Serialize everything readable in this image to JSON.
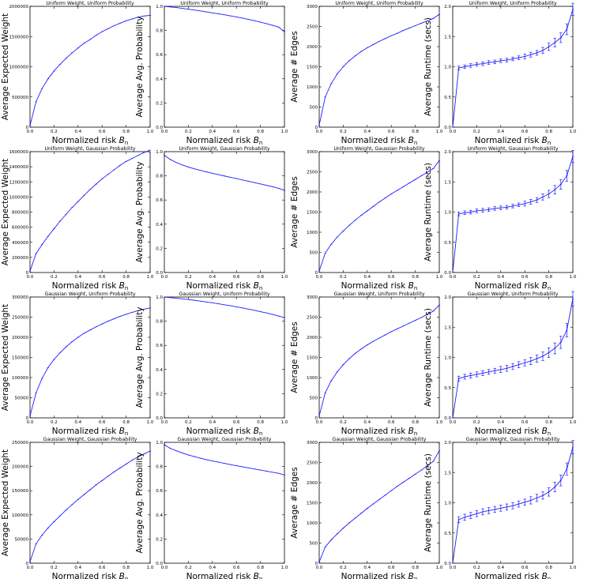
{
  "chart_data": {
    "type": "line",
    "x": [
      0.0,
      0.05,
      0.1,
      0.15,
      0.2,
      0.25,
      0.3,
      0.35,
      0.4,
      0.45,
      0.5,
      0.55,
      0.6,
      0.65,
      0.7,
      0.75,
      0.8,
      0.85,
      0.9,
      0.95,
      1.0
    ],
    "xlabel_text": "Normalized risk ",
    "xlabel_symbol": "B",
    "xlabel_sub": "n",
    "xticks": [
      0.0,
      0.2,
      0.4,
      0.6,
      0.8,
      1.0
    ],
    "xtick_labels": [
      "0.0",
      "0.2",
      "0.4",
      "0.6",
      "0.8",
      "1.0"
    ],
    "color": "#1f1fff",
    "panels": [
      {
        "title": "Uniform Weight, Uniform Probability",
        "ylabel": "Average Expected Weight",
        "ylim": [
          0,
          2000000
        ],
        "yticks": [
          0,
          500000,
          1000000,
          1500000,
          2000000
        ],
        "ytick_labels": [
          "0",
          "500000",
          "1000000",
          "1500000",
          "2000000"
        ],
        "y": [
          30000,
          420000,
          640000,
          800000,
          930000,
          1040000,
          1140000,
          1230000,
          1310000,
          1390000,
          1450000,
          1520000,
          1580000,
          1630000,
          1680000,
          1720000,
          1760000,
          1790000,
          1820000,
          1840000,
          1850000
        ]
      },
      {
        "title": "Uniform Weight, Uniform Probability",
        "ylabel": "Average Avg. Probability",
        "ylim": [
          0.0,
          1.0
        ],
        "yticks": [
          0.0,
          0.2,
          0.4,
          0.6,
          0.8,
          1.0
        ],
        "ytick_labels": [
          "0.0",
          "0.2",
          "0.4",
          "0.6",
          "0.8",
          "1.0"
        ],
        "y": [
          1.0,
          0.995,
          0.99,
          0.983,
          0.976,
          0.969,
          0.962,
          0.954,
          0.946,
          0.938,
          0.93,
          0.921,
          0.912,
          0.902,
          0.892,
          0.881,
          0.869,
          0.857,
          0.843,
          0.829,
          0.79
        ]
      },
      {
        "title": "Uniform Weight, Uniform Probability",
        "ylabel": "Average # Edges",
        "ylim": [
          0,
          3000
        ],
        "yticks": [
          0,
          500,
          1000,
          1500,
          2000,
          2500,
          3000
        ],
        "ytick_labels": [
          "0",
          "500",
          "1000",
          "1500",
          "2000",
          "2500",
          "3000"
        ],
        "y": [
          50,
          750,
          1080,
          1320,
          1500,
          1650,
          1770,
          1880,
          1970,
          2050,
          2130,
          2200,
          2270,
          2330,
          2400,
          2460,
          2520,
          2580,
          2640,
          2700,
          2800
        ]
      },
      {
        "title": "Uniform Weight, Uniform Probability",
        "ylabel": "Average Runtime (secs)",
        "ylim": [
          0.0,
          2.0
        ],
        "yticks": [
          0.0,
          0.5,
          1.0,
          1.5,
          2.0
        ],
        "ytick_labels": [
          "0.0",
          "0.5",
          "1.0",
          "1.5",
          "2.0"
        ],
        "y": [
          0.0,
          0.98,
          1.0,
          1.02,
          1.04,
          1.05,
          1.07,
          1.08,
          1.1,
          1.11,
          1.13,
          1.15,
          1.17,
          1.2,
          1.23,
          1.27,
          1.33,
          1.4,
          1.48,
          1.62,
          1.95
        ],
        "err": [
          0,
          0.03,
          0.03,
          0.03,
          0.03,
          0.03,
          0.03,
          0.03,
          0.03,
          0.03,
          0.03,
          0.03,
          0.04,
          0.04,
          0.04,
          0.05,
          0.06,
          0.07,
          0.08,
          0.09,
          0.1
        ]
      },
      {
        "title": "Uniform Weight, Gaussian Probability",
        "ylabel": "Average Expected Weight",
        "ylim": [
          0,
          1600000
        ],
        "yticks": [
          0,
          200000,
          400000,
          600000,
          800000,
          1000000,
          1200000,
          1400000,
          1600000
        ],
        "ytick_labels": [
          "0",
          "200000",
          "400000",
          "600000",
          "800000",
          "1000000",
          "1200000",
          "1400000",
          "1600000"
        ],
        "y": [
          20000,
          250000,
          370000,
          480000,
          580000,
          680000,
          770000,
          860000,
          940000,
          1020000,
          1100000,
          1170000,
          1240000,
          1300000,
          1360000,
          1420000,
          1470000,
          1510000,
          1550000,
          1590000,
          1620000
        ]
      },
      {
        "title": "Uniform Weight, Gaussian Probability",
        "ylabel": "Average Avg. Probability",
        "ylim": [
          0.0,
          1.0
        ],
        "yticks": [
          0.0,
          0.2,
          0.4,
          0.6,
          0.8,
          1.0
        ],
        "ytick_labels": [
          "0.0",
          "0.2",
          "0.4",
          "0.6",
          "0.8",
          "1.0"
        ],
        "y": [
          0.97,
          0.935,
          0.91,
          0.89,
          0.873,
          0.858,
          0.845,
          0.833,
          0.821,
          0.81,
          0.799,
          0.788,
          0.777,
          0.766,
          0.755,
          0.744,
          0.733,
          0.722,
          0.71,
          0.697,
          0.68
        ]
      },
      {
        "title": "Uniform Weight, Gaussian Probability",
        "ylabel": "Average # Edges",
        "ylim": [
          0,
          3000
        ],
        "yticks": [
          0,
          500,
          1000,
          1500,
          2000,
          2500,
          3000
        ],
        "ytick_labels": [
          "0",
          "500",
          "1000",
          "1500",
          "2000",
          "2500",
          "3000"
        ],
        "y": [
          40,
          480,
          700,
          880,
          1030,
          1170,
          1300,
          1420,
          1530,
          1640,
          1750,
          1850,
          1950,
          2040,
          2130,
          2220,
          2310,
          2400,
          2490,
          2580,
          2780
        ]
      },
      {
        "title": "Uniform Weight, Gaussian Probability",
        "ylabel": "Average Runtime (secs)",
        "ylim": [
          0.0,
          2.0
        ],
        "yticks": [
          0.0,
          0.5,
          1.0,
          1.5,
          2.0
        ],
        "ytick_labels": [
          "0.0",
          "0.5",
          "1.0",
          "1.5",
          "2.0"
        ],
        "y": [
          0.0,
          0.97,
          0.99,
          1.0,
          1.02,
          1.03,
          1.04,
          1.06,
          1.07,
          1.08,
          1.1,
          1.12,
          1.14,
          1.17,
          1.2,
          1.25,
          1.3,
          1.37,
          1.46,
          1.6,
          1.92
        ],
        "err": [
          0,
          0.03,
          0.03,
          0.03,
          0.03,
          0.03,
          0.03,
          0.03,
          0.03,
          0.03,
          0.03,
          0.03,
          0.04,
          0.04,
          0.04,
          0.05,
          0.06,
          0.07,
          0.08,
          0.09,
          0.1
        ]
      },
      {
        "title": "Gaussian Weight, Uniform Probability",
        "ylabel": "Average Expected Weight",
        "ylim": [
          0,
          300000
        ],
        "yticks": [
          0,
          50000,
          100000,
          150000,
          200000,
          250000,
          300000
        ],
        "ytick_labels": [
          "0",
          "50000",
          "100000",
          "150000",
          "200000",
          "250000",
          "300000"
        ],
        "y": [
          5000,
          62000,
          98000,
          125000,
          145000,
          162000,
          176000,
          189000,
          200000,
          210000,
          218000,
          226000,
          233000,
          240000,
          246000,
          252000,
          257000,
          262000,
          266000,
          270000,
          273000
        ]
      },
      {
        "title": "Gaussian Weight, Uniform Probability",
        "ylabel": "Average Avg. Probability",
        "ylim": [
          0.0,
          1.0
        ],
        "yticks": [
          0.0,
          0.2,
          0.4,
          0.6,
          0.8,
          1.0
        ],
        "ytick_labels": [
          "0.0",
          "0.2",
          "0.4",
          "0.6",
          "0.8",
          "1.0"
        ],
        "y": [
          1.0,
          0.995,
          0.99,
          0.985,
          0.979,
          0.973,
          0.966,
          0.959,
          0.952,
          0.944,
          0.936,
          0.928,
          0.919,
          0.91,
          0.9,
          0.89,
          0.879,
          0.868,
          0.856,
          0.843,
          0.83
        ]
      },
      {
        "title": "Gaussian Weight, Uniform Probability",
        "ylabel": "Average # Edges",
        "ylim": [
          0,
          3000
        ],
        "yticks": [
          0,
          500,
          1000,
          1500,
          2000,
          2500,
          3000
        ],
        "ytick_labels": [
          "0",
          "500",
          "1000",
          "1500",
          "2000",
          "2500",
          "3000"
        ],
        "y": [
          50,
          620,
          920,
          1140,
          1320,
          1470,
          1600,
          1710,
          1810,
          1900,
          1980,
          2060,
          2140,
          2210,
          2280,
          2350,
          2420,
          2490,
          2570,
          2650,
          2800
        ]
      },
      {
        "title": "Gaussian Weight, Uniform Probability",
        "ylabel": "Average Runtime (secs)",
        "ylim": [
          0.0,
          2.0
        ],
        "yticks": [
          0.0,
          0.5,
          1.0,
          1.5,
          2.0
        ],
        "ytick_labels": [
          "0.0",
          "0.5",
          "1.0",
          "1.5",
          "2.0"
        ],
        "y": [
          0.0,
          0.65,
          0.68,
          0.7,
          0.72,
          0.74,
          0.76,
          0.78,
          0.8,
          0.82,
          0.85,
          0.88,
          0.91,
          0.94,
          0.98,
          1.02,
          1.08,
          1.15,
          1.25,
          1.45,
          1.97
        ],
        "err": [
          0,
          0.04,
          0.04,
          0.04,
          0.04,
          0.04,
          0.04,
          0.04,
          0.05,
          0.05,
          0.05,
          0.05,
          0.05,
          0.06,
          0.06,
          0.07,
          0.08,
          0.09,
          0.1,
          0.11,
          0.12
        ]
      },
      {
        "title": "Gaussian Weight, Gaussian Probability",
        "ylabel": "Average Expected Weight",
        "ylim": [
          0,
          250000
        ],
        "yticks": [
          0,
          50000,
          100000,
          150000,
          200000,
          250000
        ],
        "ytick_labels": [
          "0",
          "50000",
          "100000",
          "150000",
          "200000",
          "250000"
        ],
        "y": [
          3000,
          40000,
          58000,
          73000,
          86000,
          98000,
          110000,
          121000,
          132000,
          142000,
          152000,
          162000,
          171000,
          180000,
          189000,
          197000,
          205000,
          213000,
          220000,
          226000,
          232000
        ]
      },
      {
        "title": "Gaussian Weight, Gaussian Probability",
        "ylabel": "Average Avg. Probability",
        "ylim": [
          0.0,
          1.0
        ],
        "yticks": [
          0.0,
          0.2,
          0.4,
          0.6,
          0.8,
          1.0
        ],
        "ytick_labels": [
          "0.0",
          "0.2",
          "0.4",
          "0.6",
          "0.8",
          "1.0"
        ],
        "y": [
          0.98,
          0.95,
          0.93,
          0.912,
          0.896,
          0.882,
          0.869,
          0.857,
          0.846,
          0.836,
          0.826,
          0.816,
          0.807,
          0.798,
          0.789,
          0.78,
          0.771,
          0.762,
          0.753,
          0.744,
          0.73
        ]
      },
      {
        "title": "Gaussian Weight, Gaussian Probability",
        "ylabel": "Average # Edges",
        "ylim": [
          0,
          3000
        ],
        "yticks": [
          0,
          500,
          1000,
          1500,
          2000,
          2500,
          3000
        ],
        "ytick_labels": [
          "0",
          "500",
          "1000",
          "1500",
          "2000",
          "2500",
          "3000"
        ],
        "y": [
          30,
          400,
          580,
          730,
          870,
          1000,
          1120,
          1240,
          1360,
          1470,
          1580,
          1690,
          1800,
          1910,
          2010,
          2110,
          2210,
          2310,
          2420,
          2530,
          2790
        ]
      },
      {
        "title": "Gaussian Weight, Gaussian Probability",
        "ylabel": "Average Runtime (secs)",
        "ylim": [
          0.0,
          2.0
        ],
        "yticks": [
          0.0,
          0.5,
          1.0,
          1.5,
          2.0
        ],
        "ytick_labels": [
          "0.0",
          "0.5",
          "1.0",
          "1.5",
          "2.0"
        ],
        "y": [
          0.0,
          0.72,
          0.76,
          0.79,
          0.82,
          0.85,
          0.87,
          0.89,
          0.91,
          0.93,
          0.95,
          0.98,
          1.01,
          1.04,
          1.08,
          1.12,
          1.18,
          1.26,
          1.37,
          1.56,
          1.92
        ],
        "err": [
          0,
          0.05,
          0.05,
          0.05,
          0.05,
          0.05,
          0.05,
          0.05,
          0.05,
          0.05,
          0.05,
          0.05,
          0.05,
          0.06,
          0.06,
          0.06,
          0.07,
          0.08,
          0.09,
          0.1,
          0.11
        ]
      }
    ]
  }
}
